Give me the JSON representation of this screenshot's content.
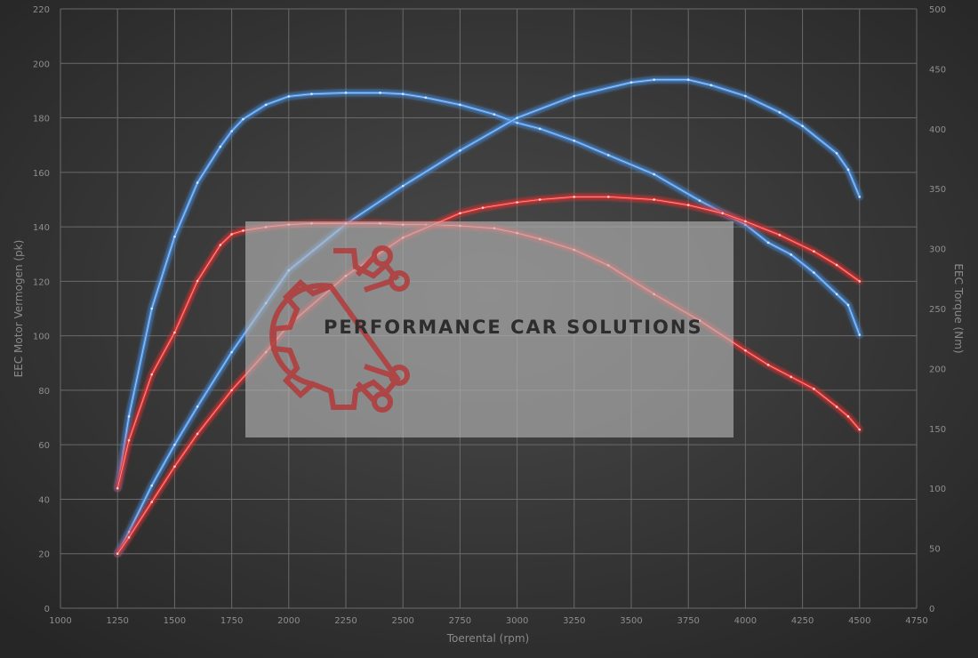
{
  "chart_data": {
    "type": "line",
    "xlabel": "Toerental (rpm)",
    "ylabel_left": "EEC Motor Vermogen (pk)",
    "ylabel_right": "EEC Torque (Nm)",
    "xlim": [
      1000,
      4750
    ],
    "ylim_left": [
      0,
      220
    ],
    "ylim_right": [
      0,
      500
    ],
    "x_ticks": [
      1000,
      1250,
      1500,
      1750,
      2000,
      2250,
      2500,
      2750,
      3000,
      3250,
      3500,
      3750,
      4000,
      4250,
      4500,
      4750
    ],
    "y_ticks_left": [
      0,
      20,
      40,
      60,
      80,
      100,
      120,
      140,
      160,
      180,
      200,
      220
    ],
    "y_ticks_right": [
      0,
      50,
      100,
      150,
      200,
      250,
      300,
      350,
      400,
      450,
      500
    ],
    "grid": true,
    "legend": "none",
    "series": [
      {
        "axis": "right",
        "color": "#4a90e2",
        "x": [
          1250,
          1300,
          1400,
          1500,
          1600,
          1700,
          1750,
          1800,
          1900,
          2000,
          2100,
          2250,
          2400,
          2500,
          2600,
          2750,
          2900,
          3000,
          3100,
          3250,
          3400,
          3600,
          3800,
          4000,
          4100,
          4200,
          4300,
          4400,
          4450,
          4500
        ],
        "values": [
          100,
          160,
          250,
          310,
          355,
          385,
          398,
          408,
          420,
          427,
          429,
          430,
          430,
          429,
          426,
          420,
          412,
          405,
          400,
          390,
          378,
          362,
          340,
          320,
          305,
          295,
          280,
          262,
          253,
          228
        ]
      },
      {
        "axis": "left",
        "color": "#4a90e2",
        "x": [
          1250,
          1300,
          1400,
          1500,
          1600,
          1750,
          1900,
          2000,
          2250,
          2500,
          2750,
          3000,
          3250,
          3500,
          3600,
          3750,
          3850,
          4000,
          4150,
          4250,
          4400,
          4450,
          4500
        ],
        "values": [
          20,
          28,
          45,
          60,
          74,
          94,
          112,
          124,
          141,
          155,
          168,
          180,
          188,
          193,
          194,
          194,
          192,
          188,
          182,
          177,
          167,
          161,
          151
        ]
      },
      {
        "axis": "right",
        "color": "#e53030",
        "x": [
          1250,
          1300,
          1400,
          1500,
          1600,
          1700,
          1750,
          1800,
          1900,
          2000,
          2100,
          2250,
          2400,
          2500,
          2600,
          2750,
          2900,
          3000,
          3100,
          3250,
          3400,
          3600,
          3800,
          4000,
          4100,
          4200,
          4300,
          4400,
          4450,
          4500
        ],
        "values": [
          100,
          140,
          195,
          230,
          273,
          303,
          312,
          315,
          318,
          320,
          321,
          321,
          321,
          320,
          320,
          319,
          317,
          313,
          308,
          299,
          286,
          262,
          240,
          215,
          203,
          193,
          183,
          168,
          160,
          149
        ]
      },
      {
        "axis": "left",
        "color": "#e53030",
        "x": [
          1250,
          1300,
          1400,
          1500,
          1600,
          1750,
          1900,
          2000,
          2250,
          2500,
          2750,
          2850,
          3000,
          3100,
          3250,
          3400,
          3600,
          3750,
          3900,
          4000,
          4150,
          4300,
          4400,
          4500
        ],
        "values": [
          20,
          26,
          39,
          52,
          64,
          80,
          94,
          104,
          122,
          136,
          145,
          147,
          149,
          150,
          151,
          151,
          150,
          148,
          145,
          142,
          137,
          131,
          126,
          120
        ]
      }
    ]
  },
  "overlay": {
    "watermark_text": "PERFORMANCE CAR SOLUTIONS",
    "logo_icon": "gear-circuit-icon",
    "logo_color": "#b33a3a"
  }
}
